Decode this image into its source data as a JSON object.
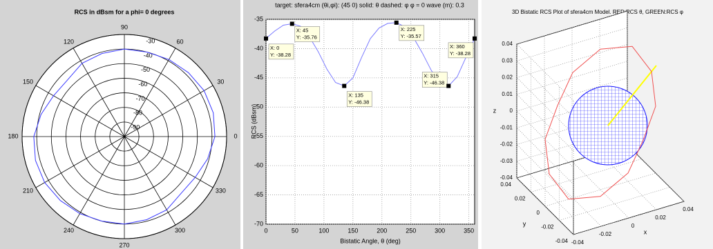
{
  "chart_data": [
    {
      "type": "polar",
      "title": "RCS in dBsm for a phi= 0 degrees",
      "rlim": [
        -100,
        -30
      ],
      "rticks": [
        -30,
        -40,
        -50,
        -60,
        -70,
        -80,
        -90
      ],
      "thetaticks": [
        0,
        30,
        60,
        90,
        120,
        150,
        180,
        210,
        240,
        270,
        300,
        330
      ],
      "color": "#3a3aff",
      "theta": [
        0,
        15,
        30,
        45,
        60,
        75,
        90,
        105,
        120,
        135,
        150,
        165,
        180,
        195,
        210,
        225,
        240,
        255,
        270,
        285,
        300,
        315,
        330,
        345,
        360
      ],
      "r": [
        -38,
        -37,
        -37,
        -38,
        -39,
        -40,
        -40,
        -41,
        -42,
        -45,
        -44,
        -41,
        -38,
        -37,
        -37,
        -38,
        -39,
        -40,
        -40,
        -41,
        -42,
        -45,
        -44,
        -41,
        -38
      ]
    },
    {
      "type": "line",
      "title": "target: sfera4cm  (θi,φi): (45 0) solid: θ  dashed: φ  φ = 0  wave (m): 0.3",
      "xlabel": "Bistatic Angle, θ (deg)",
      "ylabel": "RCS (dBsm)",
      "xlim": [
        0,
        360
      ],
      "xticks": [
        0,
        50,
        100,
        150,
        200,
        250,
        300,
        350
      ],
      "ylim": [
        -70,
        -35
      ],
      "yticks": [
        -35,
        -40,
        -45,
        -50,
        -55,
        -60,
        -65,
        -70
      ],
      "grid": true,
      "color": "#7a7aff",
      "x": [
        0,
        15,
        30,
        45,
        60,
        75,
        90,
        105,
        120,
        135,
        150,
        165,
        180,
        195,
        210,
        225,
        240,
        255,
        270,
        285,
        300,
        315,
        330,
        345,
        360
      ],
      "values": [
        -38.28,
        -37,
        -36,
        -35.76,
        -36.2,
        -38,
        -40.5,
        -43.5,
        -45.8,
        -46.38,
        -45,
        -41.5,
        -38.3,
        -36.5,
        -35.7,
        -35.57,
        -36.3,
        -38.2,
        -40.8,
        -43.7,
        -45.9,
        -46.38,
        -44.8,
        -41.5,
        -38.28
      ],
      "datatips": [
        {
          "x": 0,
          "y": -38.28,
          "x_label": "X: 0",
          "y_label": "Y: -38.28"
        },
        {
          "x": 45,
          "y": -35.76,
          "x_label": "X: 45",
          "y_label": "Y: -35.76"
        },
        {
          "x": 135,
          "y": -46.38,
          "x_label": "X: 135",
          "y_label": "Y: -46.38"
        },
        {
          "x": 225,
          "y": -35.57,
          "x_label": "X: 225",
          "y_label": "Y: -35.57"
        },
        {
          "x": 315,
          "y": -46.38,
          "x_label": "X: 315",
          "y_label": "Y: -46.38"
        },
        {
          "x": 360,
          "y": -38.28,
          "x_label": "X: 360",
          "y_label": "Y: -38.28"
        }
      ]
    },
    {
      "type": "scatter3d",
      "title": "3D Bistatic RCS Plot of sfera4cm Model. RED:RCS θ, GREEN:RCS φ",
      "xlabel": "x",
      "ylabel": "y",
      "zlabel": "z",
      "xlim": [
        -0.04,
        0.04
      ],
      "xticks": [
        -0.04,
        -0.02,
        0,
        0.02,
        0.04
      ],
      "ylim": [
        -0.04,
        0.04
      ],
      "yticks": [
        -0.04,
        -0.02,
        0,
        0.02,
        0.04
      ],
      "zlim": [
        -0.04,
        0.04
      ],
      "zticks": [
        -0.04,
        -0.03,
        -0.02,
        -0.01,
        0,
        0.01,
        0.02,
        0.03,
        0.04
      ],
      "grid": true,
      "series": [
        {
          "color": "#f05050",
          "x": [
            0.04,
            0.037,
            0.023,
            0,
            -0.02,
            -0.031,
            -0.04,
            -0.037,
            -0.023,
            0,
            0.02,
            0.031
          ],
          "y": [
            0,
            0,
            0,
            0,
            0,
            0,
            0,
            0,
            0,
            0,
            0,
            0
          ],
          "z": [
            0,
            0.0215,
            0.04,
            0.044,
            0.035,
            0.018,
            0,
            -0.0215,
            -0.04,
            -0.044,
            -0.035,
            -0.018
          ]
        }
      ]
    }
  ]
}
